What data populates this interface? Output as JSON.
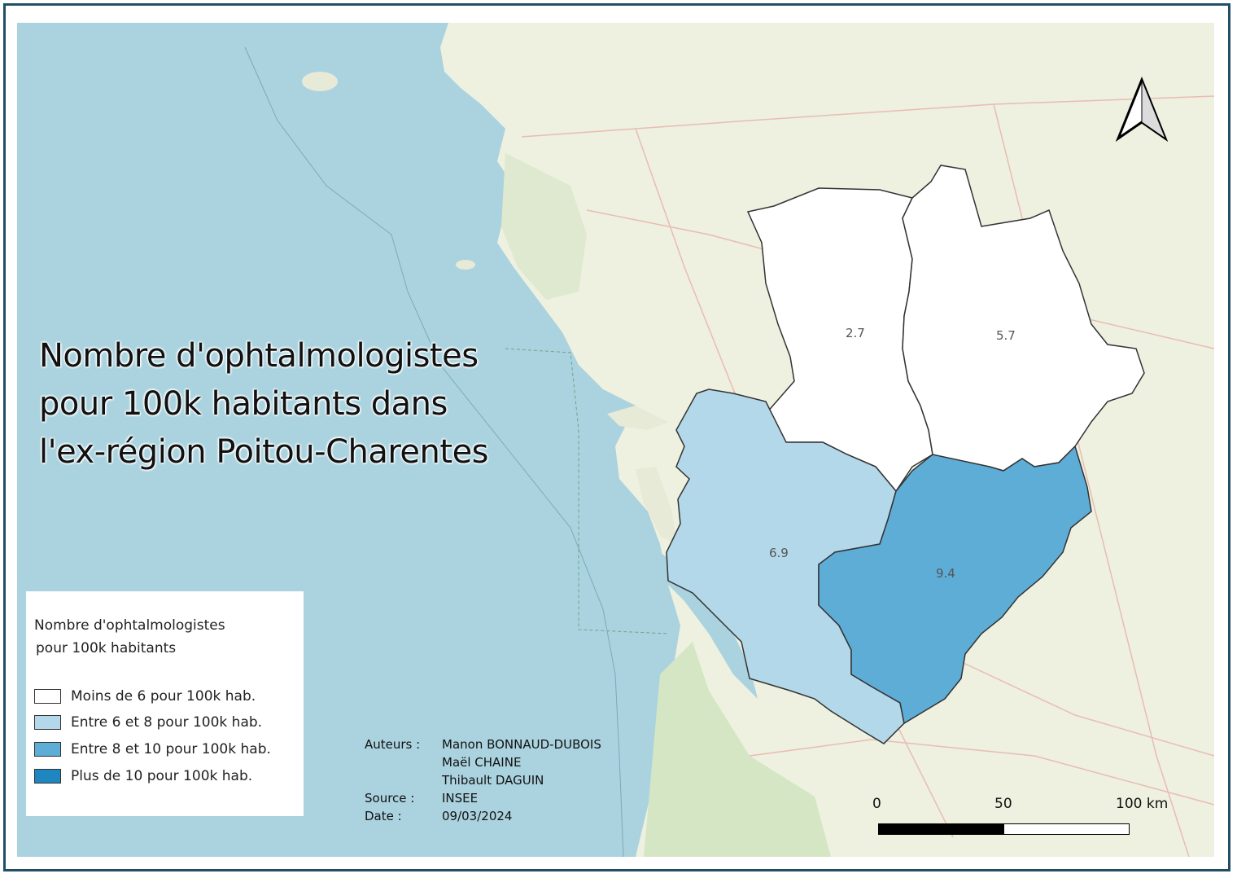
{
  "title": {
    "line1": "Nombre d'ophtalmologistes",
    "line2": "pour 100k habitants dans",
    "line3": "l'ex-région Poitou-Charentes"
  },
  "legend": {
    "title_line1": "Nombre d'ophtalmologistes",
    "title_line2": "pour 100k habitants",
    "items": [
      {
        "label": "Moins de 6 pour 100k hab.",
        "color": "#ffffff"
      },
      {
        "label": "Entre 6 et 8 pour 100k hab.",
        "color": "#b3d8ea"
      },
      {
        "label": "Entre 8 et 10 pour 100k hab.",
        "color": "#5eadd6"
      },
      {
        "label": "Plus de 10 pour 100k hab.",
        "color": "#1f87bf"
      }
    ]
  },
  "departments": [
    {
      "value": "2.7",
      "color": "#ffffff"
    },
    {
      "value": "5.7",
      "color": "#ffffff"
    },
    {
      "value": "6.9",
      "color": "#b3d8ea"
    },
    {
      "value": "9.4",
      "color": "#5eadd6"
    }
  ],
  "credits": {
    "authors_key": "Auteurs :",
    "authors": [
      "Manon BONNAUD-DUBOIS",
      "Maël CHAINE",
      "Thibault DAGUIN"
    ],
    "source_key": "Source :",
    "source": "INSEE",
    "date_key": "Date :",
    "date": "09/03/2024"
  },
  "scale": {
    "ticks": [
      "0",
      "50",
      "100 km"
    ]
  },
  "colors": {
    "sea": "#aad3df",
    "land": "#eef0e0",
    "border": "#1f4e66"
  },
  "icons": {
    "north_arrow": "north-arrow-icon"
  }
}
